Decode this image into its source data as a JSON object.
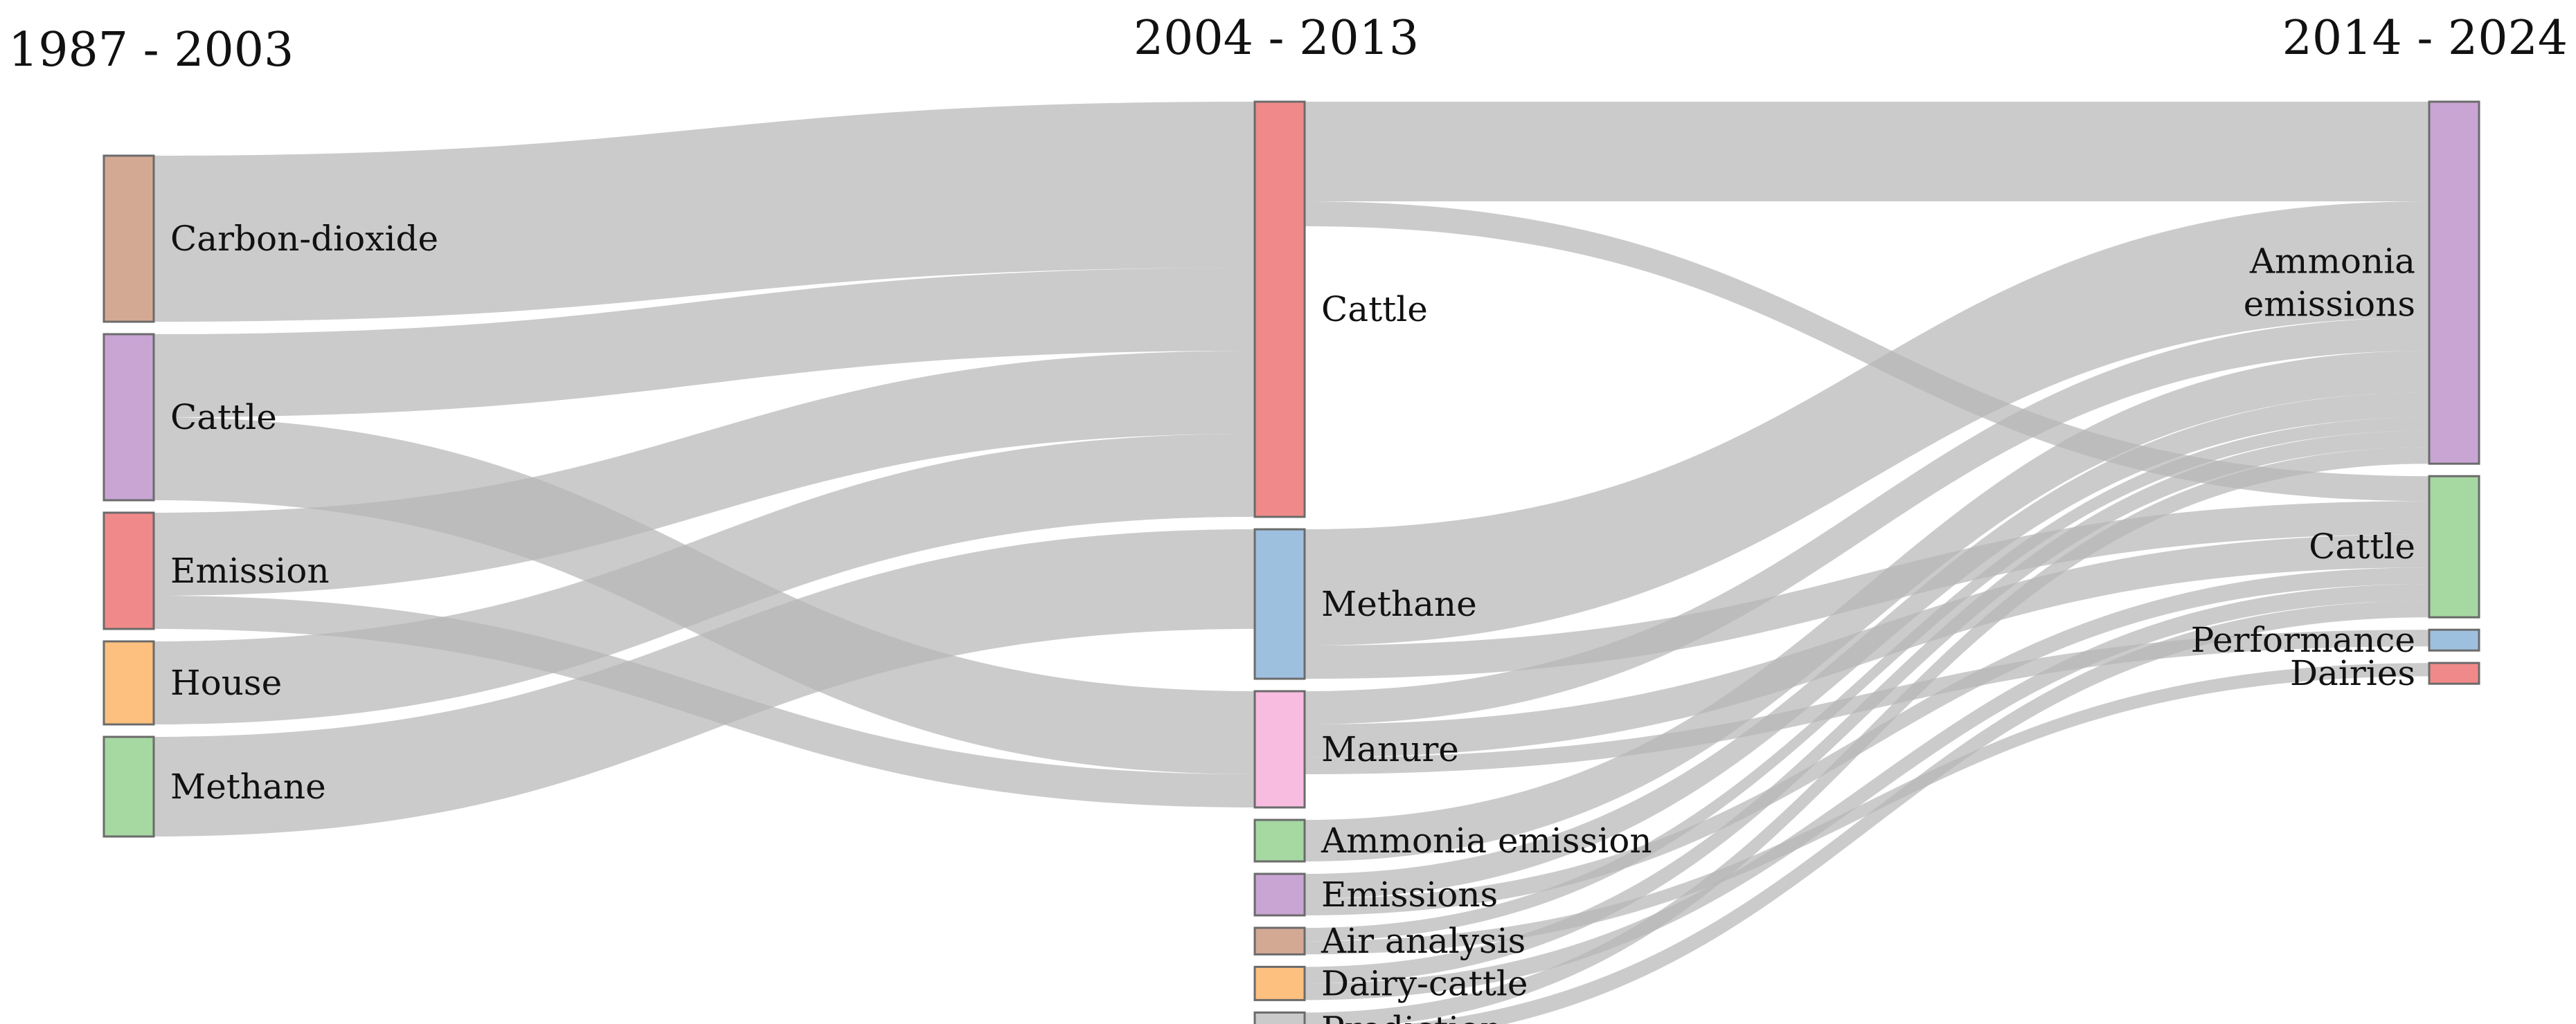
{
  "colors": {
    "link": "#b5b5b5",
    "brown": "#d4a994",
    "purple": "#c9a5d4",
    "red": "#f08a8a",
    "orange": "#fdc07f",
    "green": "#a6d8a2",
    "blue": "#9ec0df",
    "pink": "#f8bce0",
    "gray": "#cacaca"
  },
  "columns": [
    {
      "title": "1987 - 2003"
    },
    {
      "title": "2004 - 2013"
    },
    {
      "title": "2014 - 2024"
    }
  ],
  "nodes": [
    {
      "id": "c1_carbon",
      "column": 0,
      "label": "Carbon-dioxide",
      "color": "brown"
    },
    {
      "id": "c1_cattle",
      "column": 0,
      "label": "Cattle",
      "color": "purple"
    },
    {
      "id": "c1_emission",
      "column": 0,
      "label": "Emission",
      "color": "red"
    },
    {
      "id": "c1_house",
      "column": 0,
      "label": "House",
      "color": "orange"
    },
    {
      "id": "c1_methane",
      "column": 0,
      "label": "Methane",
      "color": "green"
    },
    {
      "id": "c2_cattle",
      "column": 1,
      "label": "Cattle",
      "color": "red"
    },
    {
      "id": "c2_methane",
      "column": 1,
      "label": "Methane",
      "color": "blue"
    },
    {
      "id": "c2_manure",
      "column": 1,
      "label": "Manure",
      "color": "pink"
    },
    {
      "id": "c2_ammonia",
      "column": 1,
      "label": "Ammonia emission",
      "color": "green"
    },
    {
      "id": "c2_emissions",
      "column": 1,
      "label": "Emissions",
      "color": "purple"
    },
    {
      "id": "c2_air",
      "column": 1,
      "label": "Air analysis",
      "color": "brown"
    },
    {
      "id": "c2_dairycattle",
      "column": 1,
      "label": "Dairy-cattle",
      "color": "orange"
    },
    {
      "id": "c2_prediction",
      "column": 1,
      "label": "Prediction",
      "color": "gray"
    },
    {
      "id": "c3_ammonia",
      "column": 2,
      "label": [
        "Ammonia",
        "emissions"
      ],
      "color": "purple"
    },
    {
      "id": "c3_cattle",
      "column": 2,
      "label": "Cattle",
      "color": "green"
    },
    {
      "id": "c3_performance",
      "column": 2,
      "label": "Performance",
      "color": "blue"
    },
    {
      "id": "c3_dairies",
      "column": 2,
      "label": "Dairies",
      "color": "red"
    }
  ],
  "links": [
    {
      "source": "c1_carbon",
      "target": "c2_cattle",
      "value": 10
    },
    {
      "source": "c1_cattle",
      "target": "c2_cattle",
      "value": 5
    },
    {
      "source": "c1_cattle",
      "target": "c2_manure",
      "value": 5
    },
    {
      "source": "c1_emission",
      "target": "c2_cattle",
      "value": 5
    },
    {
      "source": "c1_emission",
      "target": "c2_manure",
      "value": 2
    },
    {
      "source": "c1_house",
      "target": "c2_cattle",
      "value": 5
    },
    {
      "source": "c1_methane",
      "target": "c2_methane",
      "value": 6
    },
    {
      "source": "c2_cattle",
      "target": "c3_ammonia",
      "value": 6
    },
    {
      "source": "c2_cattle",
      "target": "c3_cattle",
      "value": 1.5
    },
    {
      "source": "c2_methane",
      "target": "c3_ammonia",
      "value": 7
    },
    {
      "source": "c2_methane",
      "target": "c3_cattle",
      "value": 2
    },
    {
      "source": "c2_manure",
      "target": "c3_ammonia",
      "value": 2
    },
    {
      "source": "c2_manure",
      "target": "c3_cattle",
      "value": 2
    },
    {
      "source": "c2_manure",
      "target": "c3_performance",
      "value": 1
    },
    {
      "source": "c2_ammonia",
      "target": "c3_ammonia",
      "value": 2.5
    },
    {
      "source": "c2_emissions",
      "target": "c3_ammonia",
      "value": 1.5
    },
    {
      "source": "c2_emissions",
      "target": "c3_cattle",
      "value": 1
    },
    {
      "source": "c2_air",
      "target": "c3_ammonia",
      "value": 0.8
    },
    {
      "source": "c2_air",
      "target": "c3_dairies",
      "value": 0.8
    },
    {
      "source": "c2_dairycattle",
      "target": "c3_ammonia",
      "value": 1
    },
    {
      "source": "c2_dairycattle",
      "target": "c3_cattle",
      "value": 1
    },
    {
      "source": "c2_prediction",
      "target": "c3_ammonia",
      "value": 1
    },
    {
      "source": "c2_prediction",
      "target": "c3_cattle",
      "value": 1
    }
  ]
}
